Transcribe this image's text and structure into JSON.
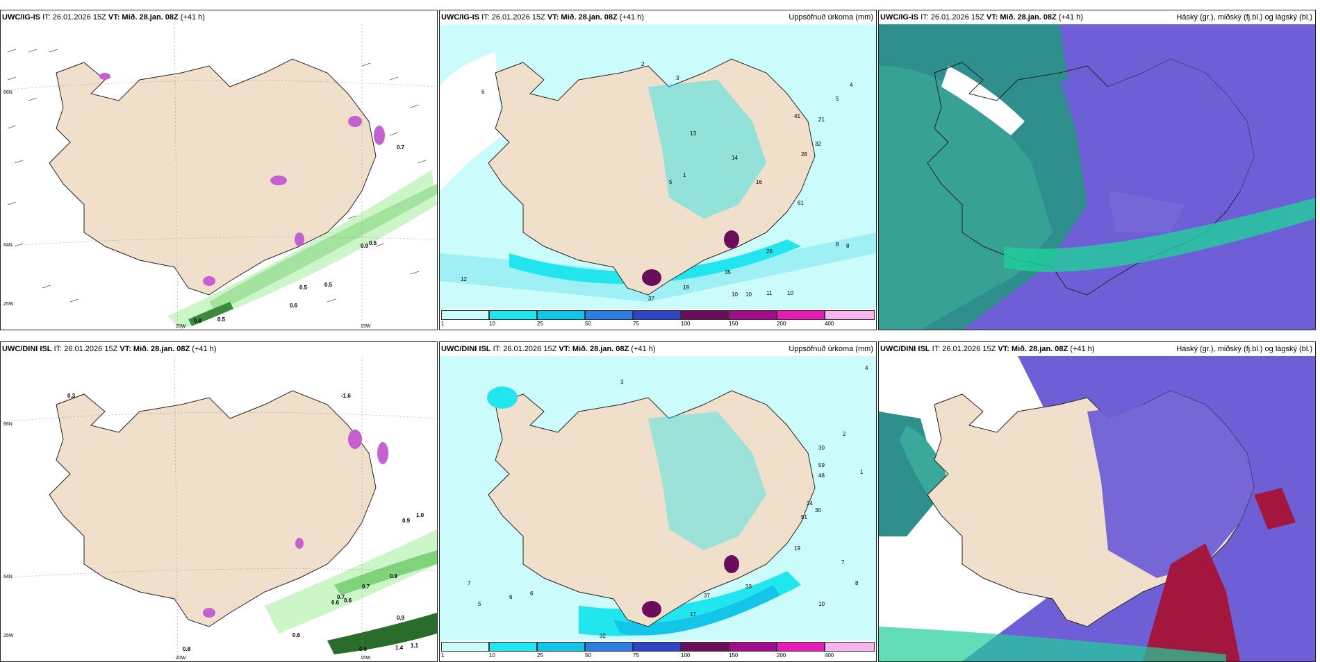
{
  "panels": [
    {
      "id": "p1",
      "source": "UWC/IG-IS",
      "it": "IT: 26.01.2026 15Z",
      "vt_label": "VT:",
      "vt": "Mið. 28.jan. 08Z",
      "lead": "(+41 h)",
      "right": "",
      "lat_labels": [
        "66N",
        "64N"
      ],
      "lon_labels": [
        "20W",
        "15W",
        "25W"
      ],
      "values": [
        "0.8",
        "0.5",
        "0.6",
        "0.5",
        "0.5",
        "0.9",
        "0.5",
        "0.7"
      ]
    },
    {
      "id": "p2",
      "source": "UWC/IG-IS",
      "it": "IT: 26.01.2026 15Z",
      "vt_label": "VT:",
      "vt": "Mið. 28.jan. 08Z",
      "lead": "(+41 h)",
      "right": "Uppsöfnuð úrkoma (mm)",
      "values": [
        "12",
        "37",
        "19",
        "35",
        "10",
        "10",
        "11",
        "10",
        "26",
        "5",
        "13",
        "14",
        "16",
        "28",
        "61",
        "32",
        "21",
        "41",
        "8",
        "8",
        "5",
        "4",
        "2",
        "3",
        "1",
        "6"
      ]
    },
    {
      "id": "p3",
      "source": "UWC/IG-IS",
      "it": "IT: 26.01.2026 15Z",
      "vt_label": "VT:",
      "vt": "Mið. 28.jan. 08Z",
      "lead": "(+41 h)",
      "right": "Háský (gr.), miðský (fj.bl.) og lágský (bl.)"
    },
    {
      "id": "p4",
      "source": "UWC/DINI ISL",
      "it": "IT: 26.01.2026 15Z",
      "vt_label": "VT:",
      "vt": "Mið. 28.jan. 08Z",
      "lead": "(+41 h)",
      "right": "",
      "lat_labels": [
        "66N",
        "64N"
      ],
      "lon_labels": [
        "20W",
        "15W",
        "25W"
      ],
      "values": [
        "0.8",
        "0.6",
        "0.6",
        "0.7",
        "0.6",
        "0.7",
        "0.9",
        "0.9",
        "1.0",
        "0.9",
        "1.1",
        "1.4",
        "0.6",
        "-1.6",
        "0.3"
      ]
    },
    {
      "id": "p5",
      "source": "UWC/DINI ISL",
      "it": "IT: 26.01.2026 15Z",
      "vt_label": "VT:",
      "vt": "Mið. 28.jan. 08Z",
      "lead": "(+41 h)",
      "right": "Uppsöfnuð úrkoma (mm)",
      "values": [
        "7",
        "5",
        "6",
        "6",
        "32",
        "37",
        "17",
        "33",
        "10",
        "10",
        "7",
        "8",
        "19",
        "51",
        "30",
        "24",
        "48",
        "59",
        "30",
        "2",
        "1",
        "3",
        "4"
      ]
    },
    {
      "id": "p6",
      "source": "UWC/DINI ISL",
      "it": "IT: 26.01.2026 15Z",
      "vt_label": "VT:",
      "vt": "Mið. 28.jan. 08Z",
      "lead": "(+41 h)",
      "right": "Háský (gr.), miðský (fj.bl.) og lágský (bl.)"
    }
  ],
  "legend": {
    "labels": [
      "1",
      "10",
      "25",
      "50",
      "75",
      "100",
      "150",
      "200",
      "400"
    ],
    "colors": [
      "#ccfbfb",
      "#22e6ee",
      "#13c5e8",
      "#2d7de0",
      "#3044c8",
      "#6a0d5a",
      "#a00f8a",
      "#e61cb7",
      "#f5b6ef"
    ]
  }
}
